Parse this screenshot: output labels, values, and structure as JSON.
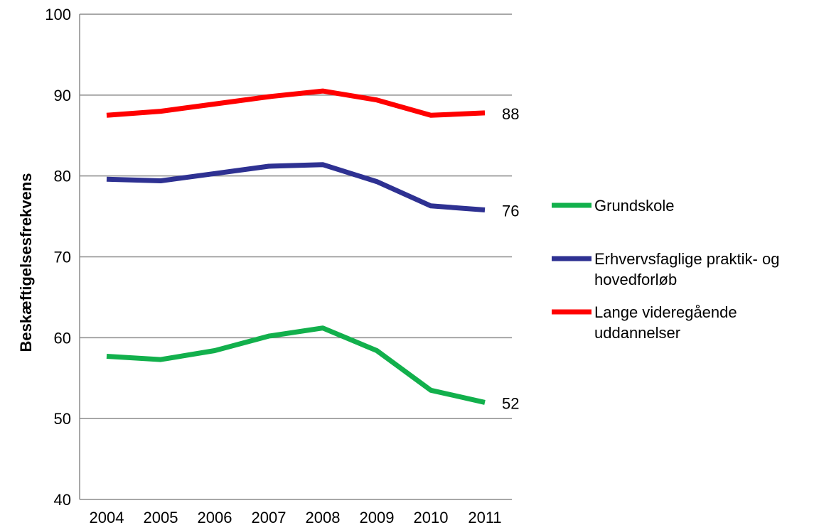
{
  "chart_data": {
    "type": "line",
    "title": "",
    "xlabel": "",
    "ylabel": "Beskæftigelsesfrekvens",
    "ylim": [
      40,
      100
    ],
    "yticks": [
      40,
      50,
      60,
      70,
      80,
      90,
      100
    ],
    "grid": true,
    "legend_position": "right",
    "x": [
      "2004",
      "2005",
      "2006",
      "2007",
      "2008",
      "2009",
      "2010",
      "2011"
    ],
    "series": [
      {
        "name": "Grundskole",
        "color": "#12b04c",
        "values": [
          57.7,
          57.3,
          58.4,
          60.2,
          61.2,
          58.4,
          53.5,
          52.0
        ],
        "end_label": "52"
      },
      {
        "name": "Erhvervsfaglige praktik- og hovedforløb",
        "legend_lines": [
          "Erhvervsfaglige praktik- og",
          "hovedforløb"
        ],
        "color": "#2e3192",
        "values": [
          79.6,
          79.4,
          80.3,
          81.2,
          81.4,
          79.3,
          76.3,
          75.8
        ],
        "end_label": "76"
      },
      {
        "name": "Lange videregående uddannelser",
        "legend_lines": [
          "Lange videregående",
          "uddannelser"
        ],
        "color": "#ff0000",
        "values": [
          87.5,
          88.0,
          88.9,
          89.8,
          90.5,
          89.4,
          87.5,
          87.8
        ],
        "end_label": "88"
      }
    ]
  }
}
